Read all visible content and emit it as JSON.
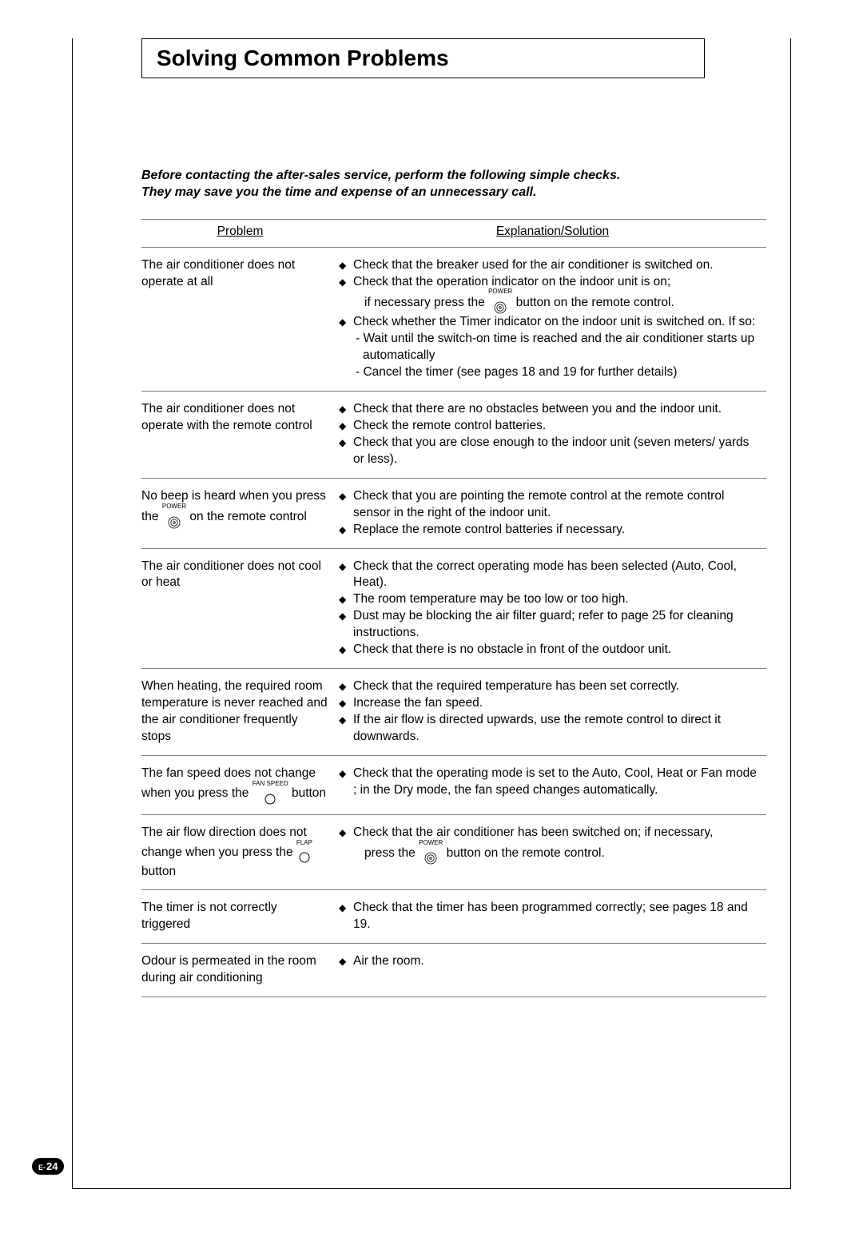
{
  "title": "Solving Common Problems",
  "intro_line1": "Before contacting the after-sales service, perform the following simple checks.",
  "intro_line2": "They may save you the time and expense of an unnecessary call.",
  "headers": {
    "problem": "Problem",
    "solution": "Explanation/Solution"
  },
  "icons": {
    "power_label": "POWER",
    "fanspeed_label": "FAN SPEED",
    "flap_label": "FLAP"
  },
  "rows": [
    {
      "problem": "The air conditioner does not operate at all",
      "solutions": [
        {
          "text": "Check that the breaker used for the air conditioner is switched on."
        },
        {
          "text_pre": "Check that the operation indicator on the indoor unit is on;",
          "sub_pre": "if necessary press the ",
          "icon": "power",
          "sub_post": " button on the remote control."
        },
        {
          "text": "Check whether the Timer indicator on the indoor unit is switched on. If so:",
          "dashes": [
            "Wait until the switch-on time is reached and the air conditioner starts up automatically",
            "Cancel the timer (see pages 18 and 19 for further details)"
          ]
        }
      ]
    },
    {
      "problem": "The air conditioner does not operate with the remote control",
      "solutions": [
        {
          "text": "Check that there are no obstacles between you and the indoor unit."
        },
        {
          "text": "Check the remote control batteries."
        },
        {
          "text": "Check that you are close enough to the indoor unit (seven meters/ yards or less)."
        }
      ]
    },
    {
      "problem_pre": "No beep is heard when you press the ",
      "problem_icon": "power",
      "problem_post": " on the remote control",
      "solutions": [
        {
          "text": "Check that you are pointing the remote control at the remote control sensor in the right of the indoor unit."
        },
        {
          "text": "Replace the remote control batteries if necessary."
        }
      ]
    },
    {
      "problem": "The air conditioner does not cool or heat",
      "solutions": [
        {
          "text": "Check that the correct operating mode has been selected (Auto, Cool, Heat)."
        },
        {
          "text": "The room temperature may be too low or too high."
        },
        {
          "text": "Dust may be blocking the air filter guard; refer to page 25 for cleaning instructions."
        },
        {
          "text": "Check that there is no obstacle in front of the outdoor unit."
        }
      ]
    },
    {
      "problem": "When heating, the required room temperature is never reached and the air conditioner frequently stops",
      "solutions": [
        {
          "text": "Check that the required temperature has been set correctly."
        },
        {
          "text": "Increase the fan speed."
        },
        {
          "text": "If the air flow is directed upwards, use the remote control to direct it downwards."
        }
      ]
    },
    {
      "problem_pre": "The fan speed does not change when you press the ",
      "problem_icon": "fanspeed",
      "problem_post": " button",
      "solutions": [
        {
          "text": "Check that the operating mode is set to the Auto, Cool, Heat or Fan mode ; in the Dry mode, the fan speed changes automatically."
        }
      ]
    },
    {
      "problem_pre": "The air flow direction does not change when you press the ",
      "problem_icon": "flap",
      "problem_post": " button",
      "solutions": [
        {
          "text_pre": "Check that the air conditioner has been switched on; if necessary,",
          "sub_pre": "press the ",
          "icon": "power",
          "sub_post": " button on the remote control."
        }
      ]
    },
    {
      "problem": "The timer is not correctly triggered",
      "solutions": [
        {
          "text": "Check that the timer has been programmed correctly; see pages 18 and 19."
        }
      ]
    },
    {
      "problem": "Odour is permeated in the room during air conditioning",
      "solutions": [
        {
          "text": "Air the room."
        }
      ]
    }
  ],
  "page_number": {
    "prefix": "E-",
    "num": "24"
  },
  "colors": {
    "text": "#000000",
    "border": "#808080",
    "page_bg": "#ffffff",
    "badge_bg": "#000000",
    "badge_fg": "#ffffff"
  }
}
